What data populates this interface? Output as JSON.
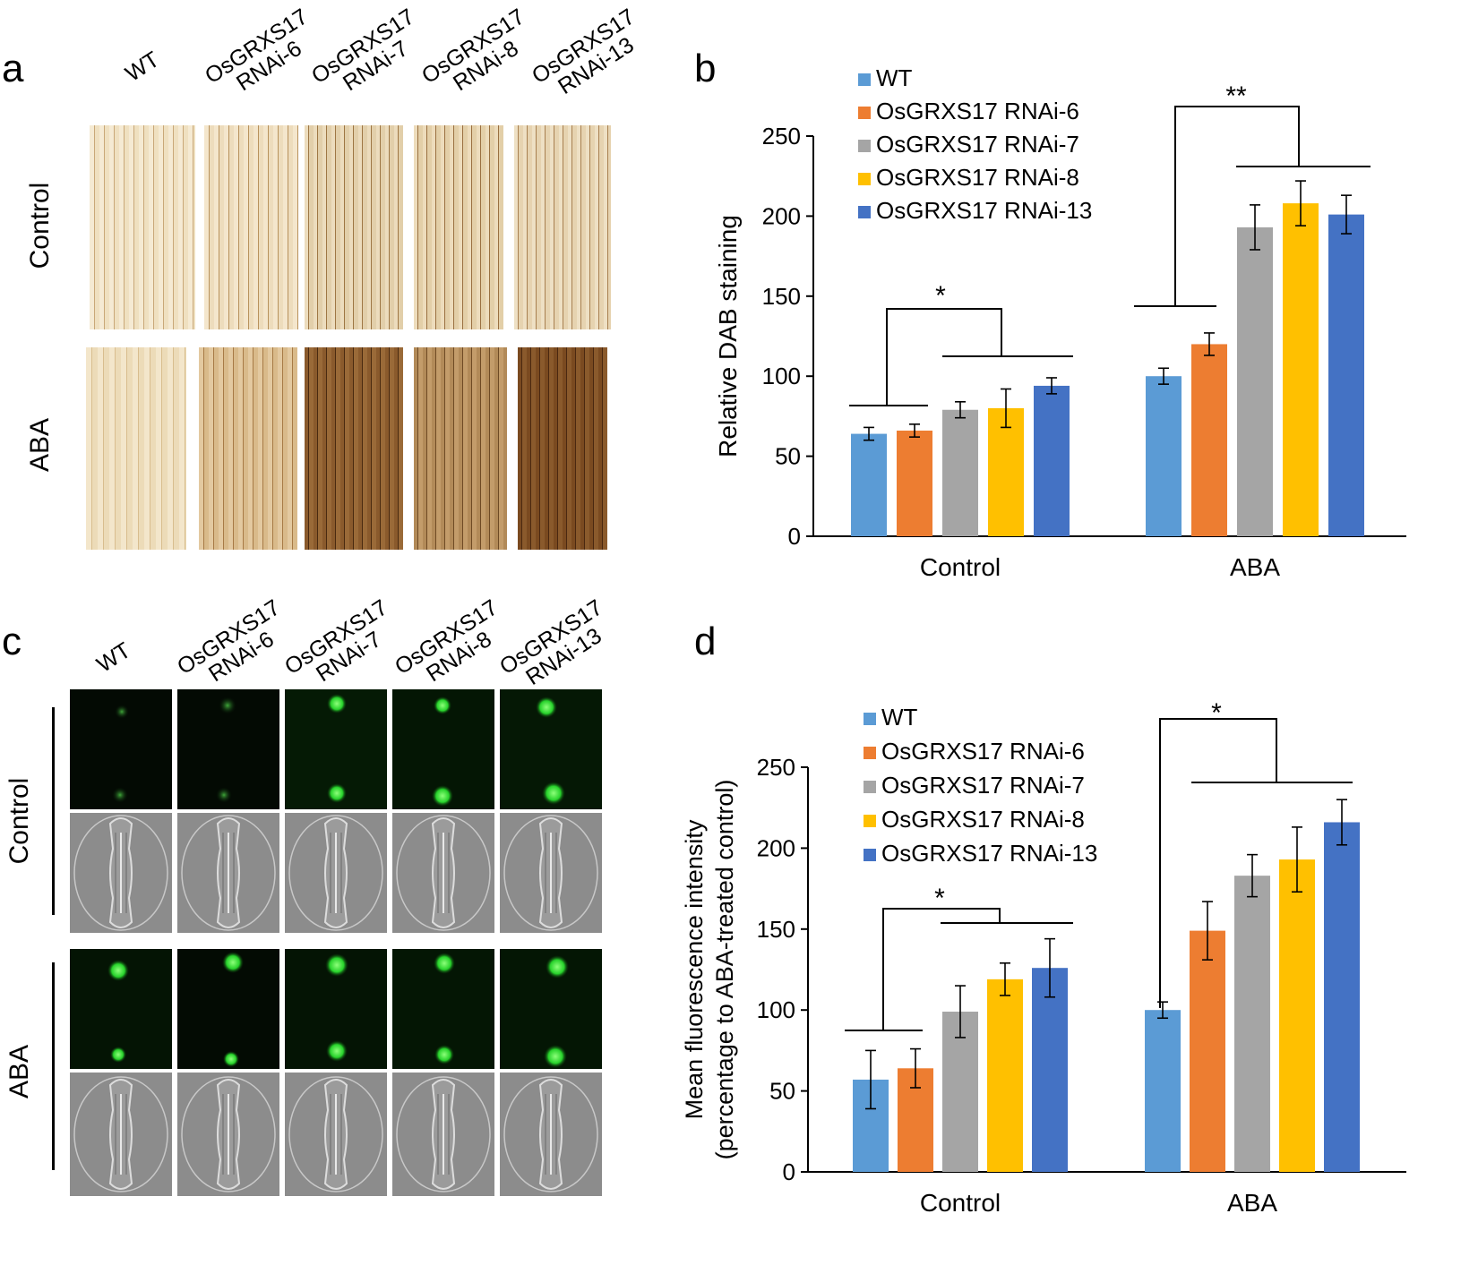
{
  "panels": {
    "a": "a",
    "b": "b",
    "c": "c",
    "d": "d"
  },
  "genotypes": [
    "WT",
    "OsGRXS17\nRNAi-6",
    "OsGRXS17\nRNAi-7",
    "OsGRXS17\nRNAi-8",
    "OsGRXS17\nRNAi-13"
  ],
  "rows": {
    "control": "Control",
    "aba": "ABA"
  },
  "chart_data": [
    {
      "id": "b",
      "type": "bar",
      "ylabel": "Relative DAB staining",
      "ylim": [
        0,
        250
      ],
      "yticks": [
        0,
        50,
        100,
        150,
        200,
        250
      ],
      "categories": [
        "Control",
        "ABA"
      ],
      "series": [
        {
          "name": "WT",
          "color": "#5b9bd5",
          "values": [
            64,
            100
          ],
          "errors": [
            4,
            5
          ]
        },
        {
          "name": "OsGRXS17 RNAi-6",
          "color": "#ed7d31",
          "values": [
            66,
            120
          ],
          "errors": [
            4,
            7
          ]
        },
        {
          "name": "OsGRXS17 RNAi-7",
          "color": "#a5a5a5",
          "values": [
            79,
            193
          ],
          "errors": [
            5,
            14
          ]
        },
        {
          "name": "OsGRXS17 RNAi-8",
          "color": "#ffc000",
          "values": [
            80,
            208
          ],
          "errors": [
            12,
            14
          ]
        },
        {
          "name": "OsGRXS17 RNAi-13",
          "color": "#4472c4",
          "values": [
            94,
            201
          ],
          "errors": [
            5,
            12
          ]
        }
      ],
      "significance": [
        "*",
        "**"
      ]
    },
    {
      "id": "d",
      "type": "bar",
      "ylabel": "Mean fluorescence intensity",
      "ylabel2": "(percentage to ABA-treated control)",
      "ylim": [
        0,
        250
      ],
      "yticks": [
        0,
        50,
        100,
        150,
        200,
        250
      ],
      "categories": [
        "Control",
        "ABA"
      ],
      "series": [
        {
          "name": "WT",
          "color": "#5b9bd5",
          "values": [
            57,
            100
          ],
          "errors": [
            18,
            5
          ]
        },
        {
          "name": "OsGRXS17 RNAi-6",
          "color": "#ed7d31",
          "values": [
            64,
            149
          ],
          "errors": [
            12,
            18
          ]
        },
        {
          "name": "OsGRXS17 RNAi-7",
          "color": "#a5a5a5",
          "values": [
            99,
            183
          ],
          "errors": [
            16,
            13
          ]
        },
        {
          "name": "OsGRXS17 RNAi-8",
          "color": "#ffc000",
          "values": [
            119,
            193
          ],
          "errors": [
            10,
            20
          ]
        },
        {
          "name": "OsGRXS17 RNAi-13",
          "color": "#4472c4",
          "values": [
            126,
            216
          ],
          "errors": [
            18,
            14
          ]
        }
      ],
      "significance": [
        "*",
        "*"
      ]
    }
  ]
}
